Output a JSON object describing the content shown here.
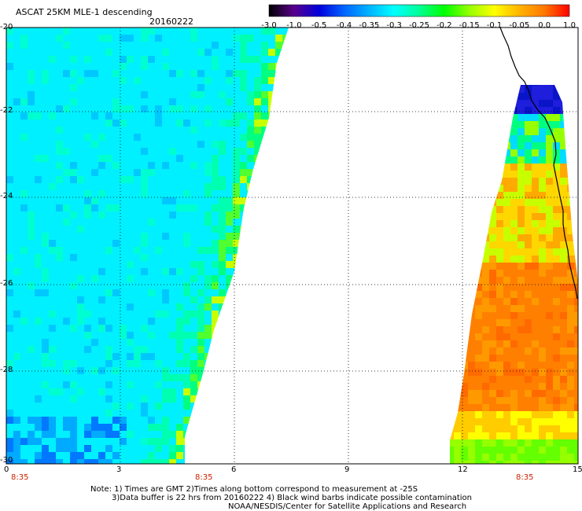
{
  "header": {
    "title": "ASCAT 25KM MLE-1 descending",
    "date": "20160222"
  },
  "colorbar": {
    "labels": [
      "-3.0",
      "-1.0",
      "-0.5",
      "-0.4",
      "-0.35",
      "-0.3",
      "-0.25",
      "-0.2",
      "-0.15",
      "-0.1",
      "-0.05",
      "0.0",
      "1.0"
    ],
    "stops": [
      "#000000",
      "#5a008c",
      "#0000dc",
      "#0064ff",
      "#00b4ff",
      "#00ffff",
      "#00ff96",
      "#00ff00",
      "#96ff00",
      "#ffff00",
      "#ffb400",
      "#ff7800",
      "#ff0000"
    ]
  },
  "axes": {
    "lat_labels": [
      "-20",
      "-22",
      "-24",
      "-26",
      "-28",
      "-30"
    ],
    "lon_labels": [
      "0",
      "3",
      "6",
      "9",
      "12",
      "15"
    ],
    "time_labels": [
      "8:35",
      "8:35",
      "8:35"
    ]
  },
  "notes": {
    "line1": "Note: 1) Times are GMT 2)Times along bottom correspond to measurement at -25S",
    "line2": "3)Data buffer is 22 hrs from 20160222 4) Black wind barbs indicate possible contamination",
    "line3": "NOAA/NESDIS/Center for Satellite Applications and Research"
  },
  "colors": {
    "swath_left_base": "#00e6ff",
    "swath_right_base": "#ff8c00",
    "coastline": "#000000"
  }
}
